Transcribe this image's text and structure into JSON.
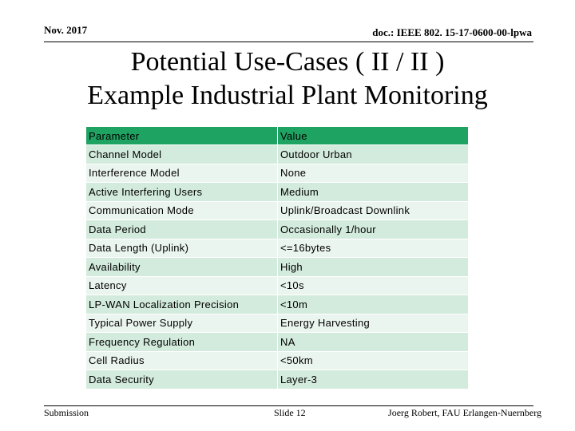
{
  "header": {
    "date": "Nov. 2017",
    "doc": "doc.: IEEE 802. 15-17-0600-00-lpwa"
  },
  "title": [
    "Potential Use-Cases ( II / II )",
    "Example Industrial Plant Monitoring"
  ],
  "table": {
    "columns": [
      "Parameter",
      "Value"
    ],
    "rows": [
      [
        "Channel Model",
        "Outdoor Urban"
      ],
      [
        "Interference Model",
        "None"
      ],
      [
        "Active Interfering Users",
        "Medium"
      ],
      [
        "Communication Mode",
        "Uplink/Broadcast Downlink"
      ],
      [
        "Data Period",
        "Occasionally 1/hour"
      ],
      [
        "Data Length (Uplink)",
        "<=16bytes"
      ],
      [
        "Availability",
        "High"
      ],
      [
        "Latency",
        "<10s"
      ],
      [
        "LP-WAN Localization Precision",
        "<10m"
      ],
      [
        "Typical Power Supply",
        "Energy Harvesting"
      ],
      [
        "Frequency Regulation",
        "NA"
      ],
      [
        "Cell Radius",
        "<50km"
      ],
      [
        "Data Security",
        "Layer-3"
      ]
    ]
  },
  "footer": {
    "left": "Submission",
    "center": "Slide 12",
    "right": "Joerg Robert, FAU Erlangen-Nuernberg"
  }
}
